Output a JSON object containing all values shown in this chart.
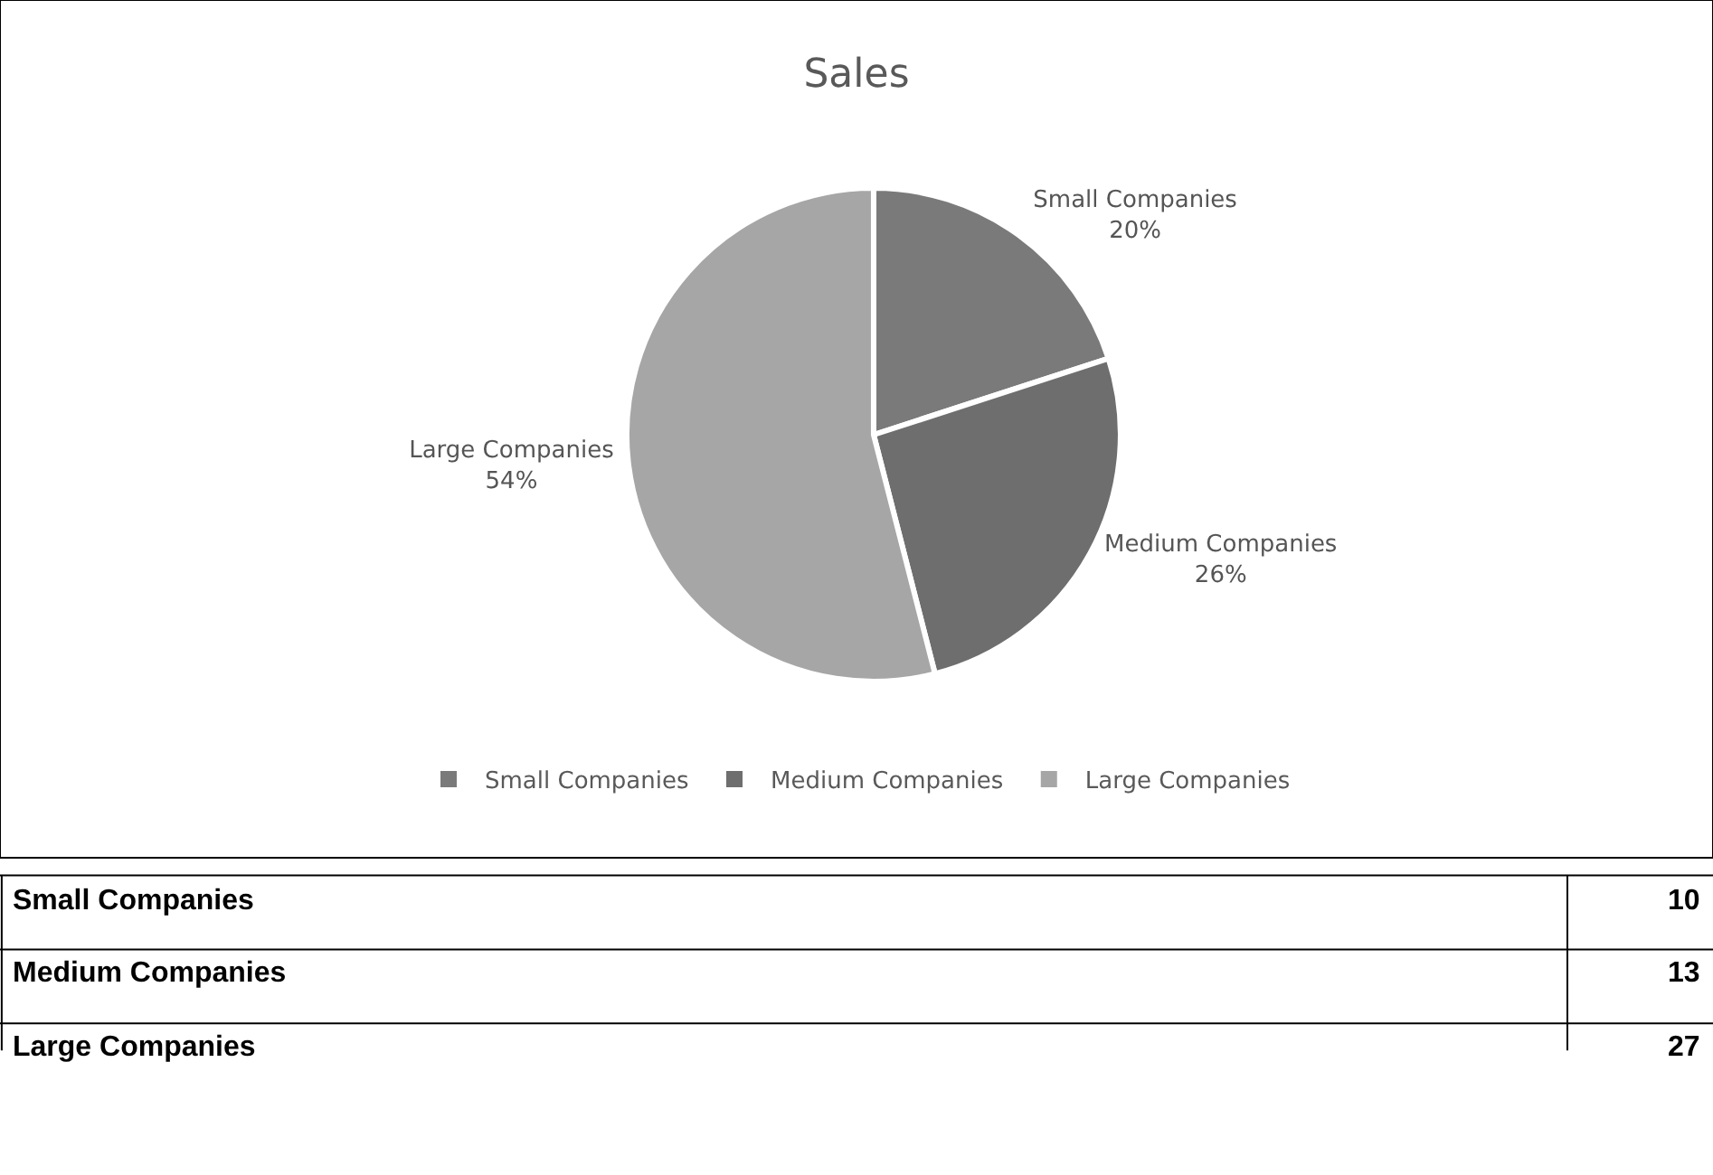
{
  "chart_data": {
    "type": "pie",
    "title": "Sales",
    "categories": [
      "Small Companies",
      "Medium Companies",
      "Large Companies"
    ],
    "values": [
      20,
      26,
      54
    ],
    "value_labels": [
      "20%",
      "26%",
      "54%"
    ],
    "colors": [
      "#7a7a7a",
      "#6e6e6e",
      "#a6a6a6"
    ],
    "annotations": [
      "10",
      "13",
      "27"
    ],
    "legend": "bottom"
  }
}
